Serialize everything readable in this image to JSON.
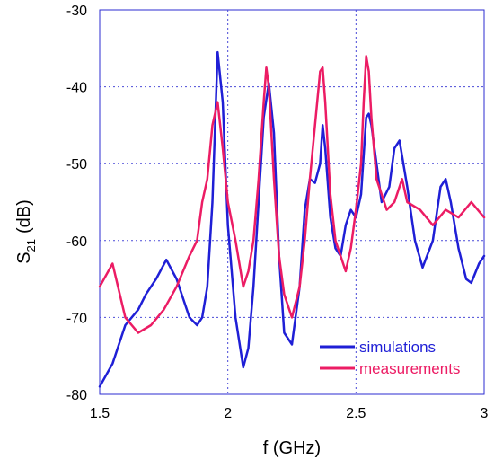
{
  "chart_data": {
    "type": "line",
    "title": "",
    "xlabel": "f (GHz)",
    "ylabel_main": "S",
    "ylabel_sub": "21",
    "ylabel_unit": "(dB)",
    "xlim": [
      1.5,
      3.0
    ],
    "ylim": [
      -80,
      -30
    ],
    "xticks": [
      1.5,
      2,
      2.5,
      3
    ],
    "xtick_labels": [
      "1.5",
      "2",
      "2.5",
      "3"
    ],
    "yticks": [
      -80,
      -70,
      -60,
      -50,
      -40,
      -30
    ],
    "ytick_labels": [
      "-80",
      "-70",
      "-60",
      "-50",
      "-40",
      "-30"
    ],
    "grid": true,
    "legend_position": "bottom-right",
    "series": [
      {
        "name": "simulations",
        "color": "#1f1fd6",
        "x": [
          1.5,
          1.55,
          1.6,
          1.65,
          1.68,
          1.72,
          1.76,
          1.8,
          1.85,
          1.88,
          1.9,
          1.92,
          1.94,
          1.96,
          1.98,
          2.0,
          2.03,
          2.06,
          2.08,
          2.1,
          2.12,
          2.14,
          2.16,
          2.18,
          2.2,
          2.22,
          2.25,
          2.28,
          2.3,
          2.32,
          2.34,
          2.36,
          2.37,
          2.38,
          2.4,
          2.42,
          2.44,
          2.46,
          2.48,
          2.5,
          2.52,
          2.54,
          2.55,
          2.56,
          2.58,
          2.6,
          2.63,
          2.65,
          2.67,
          2.7,
          2.73,
          2.76,
          2.8,
          2.83,
          2.85,
          2.87,
          2.9,
          2.93,
          2.95,
          2.98,
          3.0
        ],
        "values": [
          -79,
          -76,
          -71,
          -69,
          -67,
          -65,
          -62.5,
          -65,
          -70,
          -71,
          -70,
          -66,
          -55,
          -35.5,
          -42,
          -58,
          -70,
          -76.5,
          -74,
          -66,
          -55,
          -44,
          -39.5,
          -46,
          -62,
          -72,
          -73.5,
          -66,
          -56,
          -52,
          -52.5,
          -50,
          -45,
          -48,
          -57,
          -61,
          -62,
          -58,
          -56,
          -57,
          -54,
          -44,
          -43.5,
          -45,
          -50,
          -55,
          -53,
          -48,
          -47,
          -53,
          -60,
          -63.5,
          -60,
          -53,
          -52,
          -55,
          -61,
          -65,
          -65.5,
          -63,
          -62
        ]
      },
      {
        "name": "measurements",
        "color": "#ec1c64",
        "x": [
          1.5,
          1.55,
          1.6,
          1.65,
          1.7,
          1.75,
          1.8,
          1.85,
          1.88,
          1.9,
          1.92,
          1.94,
          1.96,
          1.98,
          2.0,
          2.03,
          2.06,
          2.08,
          2.1,
          2.12,
          2.14,
          2.15,
          2.16,
          2.18,
          2.2,
          2.22,
          2.25,
          2.28,
          2.3,
          2.32,
          2.34,
          2.36,
          2.37,
          2.38,
          2.4,
          2.42,
          2.44,
          2.46,
          2.48,
          2.5,
          2.52,
          2.53,
          2.54,
          2.55,
          2.56,
          2.58,
          2.6,
          2.62,
          2.65,
          2.68,
          2.7,
          2.75,
          2.8,
          2.85,
          2.9,
          2.95,
          3.0
        ],
        "values": [
          -66,
          -63,
          -70,
          -72,
          -71,
          -69,
          -66,
          -62,
          -60,
          -55,
          -52,
          -45,
          -42,
          -48,
          -55,
          -60,
          -66,
          -64,
          -60,
          -52,
          -42,
          -37.5,
          -40,
          -52,
          -62,
          -67,
          -70,
          -66,
          -60,
          -52,
          -45,
          -38,
          -37.5,
          -42,
          -54,
          -60,
          -62,
          -64,
          -61,
          -56,
          -50,
          -42,
          -36,
          -38,
          -44,
          -52,
          -54,
          -56,
          -55,
          -52,
          -55,
          -56,
          -58,
          -56,
          -57,
          -55,
          -57
        ]
      }
    ]
  }
}
